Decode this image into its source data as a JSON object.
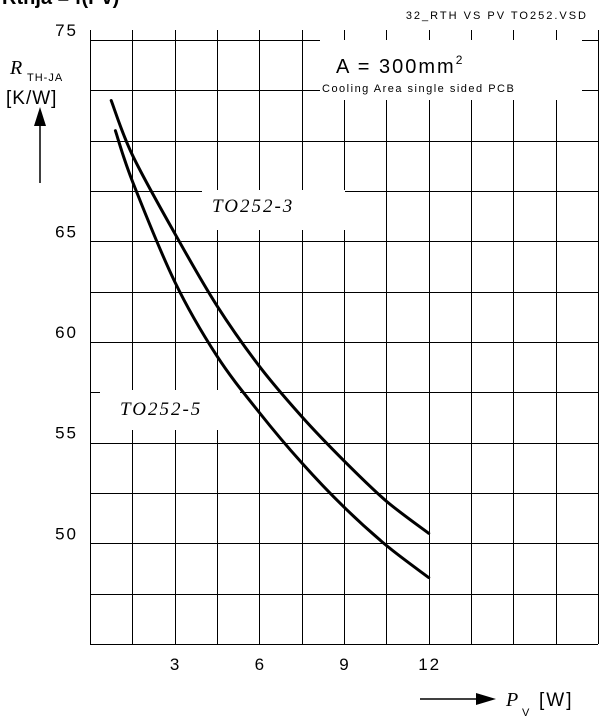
{
  "header": {
    "cropped_title": "Rthja = f(Pv)",
    "file_ref": "32_RTH VS PV TO252.VSD"
  },
  "chart_data": {
    "type": "line",
    "xlim": [
      0,
      18
    ],
    "ylim": [
      44.5,
      75
    ],
    "x_ticks": [
      3,
      6,
      9,
      12
    ],
    "y_ticks": [
      75,
      65,
      60,
      55,
      50
    ],
    "grid": true,
    "ylabel": {
      "symbol": "R",
      "subscript": "TH-JA",
      "unit": "[K/W]"
    },
    "xlabel": {
      "symbol": "P",
      "subscript": "V",
      "unit": "[W]"
    },
    "annotation": {
      "line1": "A = 300mm",
      "superscript": "2",
      "line2": "Cooling Area single sided PCB"
    },
    "series": [
      {
        "name": "TO252-3",
        "x": [
          0.75,
          1.5,
          3,
          4.5,
          6,
          7.5,
          9,
          10.5,
          12
        ],
        "y": [
          71.5,
          68.8,
          64.9,
          61.3,
          58.3,
          55.8,
          53.6,
          51.6,
          50.0
        ]
      },
      {
        "name": "TO252-5",
        "x": [
          0.9,
          1.5,
          3,
          4.5,
          6,
          7.5,
          9,
          10.5,
          12
        ],
        "y": [
          70.0,
          67.5,
          62.5,
          58.8,
          56.0,
          53.5,
          51.3,
          49.4,
          47.8
        ]
      }
    ]
  }
}
